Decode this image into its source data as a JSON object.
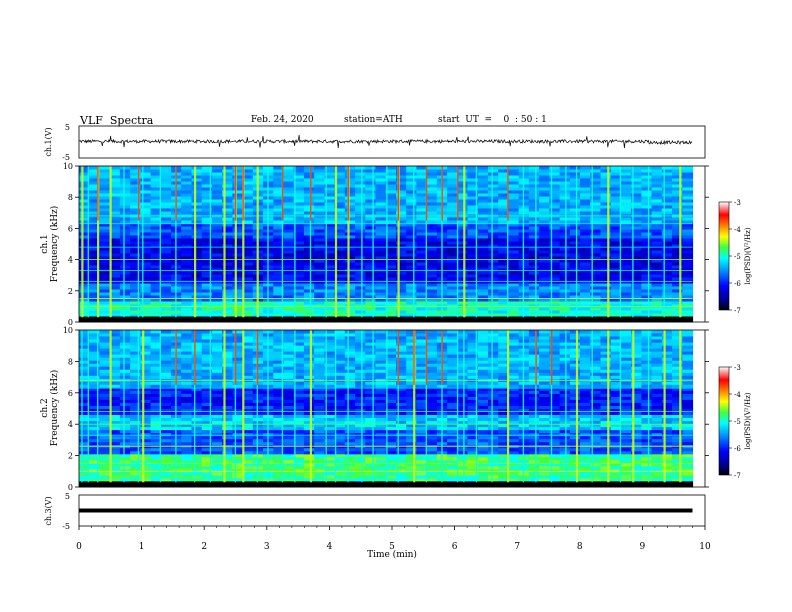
{
  "header": {
    "title": "VLF  Spectra",
    "date": "Feb. 24, 2020",
    "station": "station=ATH",
    "start": "start  UT  =    0  : 50 : 1"
  },
  "colors": {
    "colormap": [
      "#000080",
      "#0000ff",
      "#00a0ff",
      "#00ffff",
      "#80ff80",
      "#ffff00",
      "#ff8000",
      "#ff0000",
      "#ffffff"
    ],
    "trace": "#000000"
  },
  "chart_data": [
    {
      "type": "line",
      "panel": "ch1-waveform",
      "ylabel": "ch.1(V)",
      "ylim": [
        -5,
        5
      ],
      "yticks": [
        "5",
        "-5"
      ],
      "x_range_min": [
        0,
        9.8
      ],
      "description_level_V": 0.2,
      "amplitude_V": 1.0
    },
    {
      "type": "heatmap",
      "panel": "ch1-spectrogram",
      "ylabel": "ch.1\nFrequency (kHz)",
      "ylabel_lines": [
        "ch.1",
        "Frequency (kHz)"
      ],
      "ylim": [
        0,
        10
      ],
      "yticks": [
        "0",
        "2",
        "4",
        "6",
        "8",
        "10"
      ],
      "colorbar": {
        "label": "log(PSD)(V²/Hz)",
        "range": [
          -7,
          -3
        ],
        "ticks": [
          "-3",
          "-4",
          "-5",
          "-6",
          "-7"
        ]
      },
      "bands_kHz": [
        {
          "range": [
            0,
            0.3
          ],
          "level": -7
        },
        {
          "range": [
            0.3,
            1.2
          ],
          "level": -5.0
        },
        {
          "range": [
            1.2,
            2.5
          ],
          "level": -5.6
        },
        {
          "range": [
            2.5,
            5.2
          ],
          "level": -6.2
        },
        {
          "range": [
            5.2,
            6.2
          ],
          "level": -5.8
        },
        {
          "range": [
            6.2,
            10
          ],
          "level": -5.4
        }
      ],
      "sferics_min": [
        0.05,
        0.15,
        0.3,
        0.5,
        0.72,
        0.95,
        1.02,
        1.3,
        1.55,
        1.85,
        2.1,
        2.32,
        2.5,
        2.62,
        2.85,
        3.02,
        3.25,
        3.45,
        3.7,
        3.95,
        4.1,
        4.3,
        4.52,
        4.7,
        4.92,
        5.1,
        5.35,
        5.55,
        5.8,
        6.05,
        6.15,
        6.35,
        6.6,
        6.85,
        7.1,
        7.3,
        7.55,
        7.78,
        7.95,
        8.2,
        8.45,
        8.65,
        8.85,
        9.1,
        9.35,
        9.6
      ]
    },
    {
      "type": "heatmap",
      "panel": "ch2-spectrogram",
      "ylabel": "ch.2\nFrequency (kHz)",
      "ylabel_lines": [
        "ch.2",
        "Frequency (kHz)"
      ],
      "ylim": [
        0,
        10
      ],
      "yticks": [
        "0",
        "2",
        "4",
        "6",
        "8",
        "10"
      ],
      "colorbar": {
        "label": "log(PSD)(V²/Hz)",
        "range": [
          -7,
          -3
        ],
        "ticks": [
          "-3",
          "-4",
          "-5",
          "-6",
          "-7"
        ]
      },
      "bands_kHz": [
        {
          "range": [
            0,
            0.3
          ],
          "level": -7
        },
        {
          "range": [
            0.3,
            2.0
          ],
          "level": -4.8
        },
        {
          "range": [
            2.0,
            3.5
          ],
          "level": -5.8
        },
        {
          "range": [
            3.5,
            4.6
          ],
          "level": -5.3
        },
        {
          "range": [
            4.6,
            6.2
          ],
          "level": -6.0
        },
        {
          "range": [
            6.2,
            10
          ],
          "level": -5.4
        }
      ],
      "sferics_min": [
        0.05,
        0.15,
        0.3,
        0.5,
        0.72,
        0.95,
        1.02,
        1.3,
        1.55,
        1.85,
        2.1,
        2.32,
        2.5,
        2.62,
        2.85,
        3.02,
        3.25,
        3.45,
        3.7,
        3.95,
        4.1,
        4.3,
        4.52,
        4.7,
        4.92,
        5.1,
        5.35,
        5.55,
        5.8,
        6.05,
        6.15,
        6.35,
        6.6,
        6.85,
        7.1,
        7.3,
        7.55,
        7.78,
        7.95,
        8.2,
        8.45,
        8.65,
        8.85,
        9.1,
        9.35,
        9.6
      ]
    },
    {
      "type": "line",
      "panel": "ch3-waveform",
      "ylabel": "ch.3(V)",
      "ylim": [
        -5,
        5
      ],
      "yticks": [
        "5",
        "-5"
      ],
      "x_range_min": [
        0,
        9.8
      ],
      "description_level_V": 0.0,
      "amplitude_V": 0.0
    }
  ],
  "xaxis": {
    "label": "Time  (min)",
    "xlim": [
      0,
      10
    ],
    "ticks": [
      "0",
      "1",
      "2",
      "3",
      "4",
      "5",
      "6",
      "7",
      "8",
      "9",
      "10"
    ]
  }
}
